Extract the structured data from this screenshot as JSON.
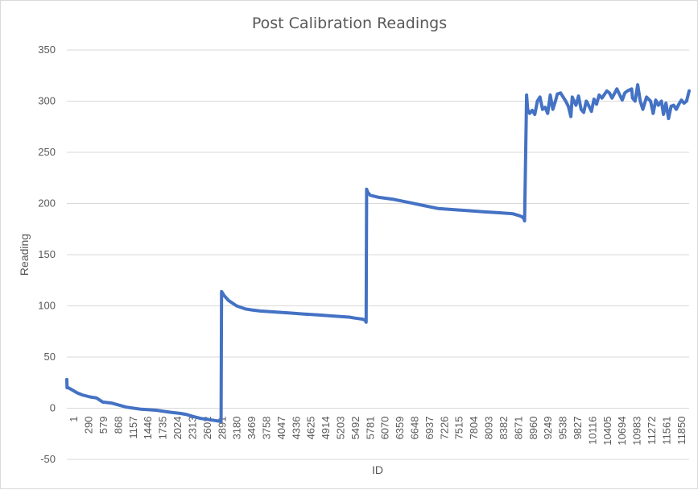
{
  "chart_data": {
    "type": "line",
    "title": "Post Calibration Readings",
    "xlabel": "ID",
    "ylabel": "Reading",
    "ylim": [
      -50,
      350
    ],
    "yticks": [
      -50,
      0,
      50,
      100,
      150,
      200,
      250,
      300,
      350
    ],
    "xlim": [
      1,
      12100
    ],
    "x_tick_labels": [
      "1",
      "290",
      "579",
      "868",
      "1157",
      "1446",
      "1735",
      "2024",
      "2313",
      "2602",
      "2891",
      "3180",
      "3469",
      "3758",
      "4047",
      "4336",
      "4625",
      "4914",
      "5203",
      "5492",
      "5781",
      "6070",
      "6359",
      "6648",
      "6937",
      "7226",
      "7515",
      "7804",
      "8093",
      "8382",
      "8671",
      "8960",
      "9249",
      "9538",
      "9827",
      "10116",
      "10405",
      "10694",
      "10983",
      "11272",
      "11561",
      "11850"
    ],
    "grid": "horizontal",
    "legend": "none",
    "colors": {
      "line": "#4472c4",
      "grid": "#d9d9d9",
      "text": "#595959"
    },
    "series": [
      {
        "x": [
          1,
          5,
          30,
          100,
          200,
          300,
          450,
          579,
          700,
          868,
          1157,
          1446,
          1735,
          2024,
          2200,
          2313,
          2450,
          2602,
          2750,
          2870,
          3000,
          3010,
          3060,
          3150,
          3300,
          3469,
          3600,
          3758,
          4047,
          4336,
          4625,
          4914,
          5203,
          5492,
          5600,
          5750,
          5800,
          5820,
          5830,
          5850,
          5900,
          6070,
          6359,
          6648,
          6937,
          7226,
          7515,
          7804,
          8093,
          8382,
          8671,
          8800,
          8850,
          8890,
          8900,
          8940,
          8960,
          9000,
          9050,
          9100,
          9150,
          9200,
          9249,
          9300,
          9350,
          9400,
          9450,
          9500,
          9538,
          9600,
          9650,
          9700,
          9750,
          9800,
          9827,
          9900,
          9950,
          10000,
          10050,
          10100,
          10116,
          10200,
          10250,
          10300,
          10350,
          10405,
          10500,
          10550,
          10600,
          10694,
          10800,
          10850,
          10900,
          10983,
          11000,
          11050,
          11100,
          11150,
          11200,
          11272,
          11350,
          11400,
          11450,
          11500,
          11561,
          11600,
          11650,
          11700,
          11750,
          11800,
          11850,
          11900,
          11950,
          12000,
          12050,
          12100
        ],
        "y": [
          28,
          20,
          20,
          18,
          15,
          13,
          11,
          10,
          6,
          5,
          1,
          -1,
          -2,
          -4,
          -5,
          -6,
          -8,
          -10,
          -11,
          -12,
          -13,
          114,
          110,
          105,
          100,
          97,
          96,
          95,
          94,
          93,
          92,
          91,
          90,
          89,
          88,
          87,
          86,
          84,
          214,
          211,
          208,
          206,
          204,
          201,
          198,
          195,
          194,
          193,
          192,
          191,
          190,
          188,
          187,
          185,
          183,
          306,
          292,
          288,
          291,
          287,
          300,
          304,
          292,
          294,
          288,
          306,
          292,
          300,
          307,
          308,
          304,
          300,
          295,
          285,
          304,
          296,
          305,
          292,
          289,
          300,
          299,
          290,
          302,
          297,
          306,
          303,
          310,
          308,
          303,
          312,
          301,
          308,
          310,
          312,
          303,
          300,
          316,
          300,
          292,
          304,
          300,
          288,
          301,
          296,
          300,
          287,
          298,
          283,
          295,
          296,
          292,
          297,
          301,
          298,
          300,
          310
        ]
      }
    ]
  }
}
